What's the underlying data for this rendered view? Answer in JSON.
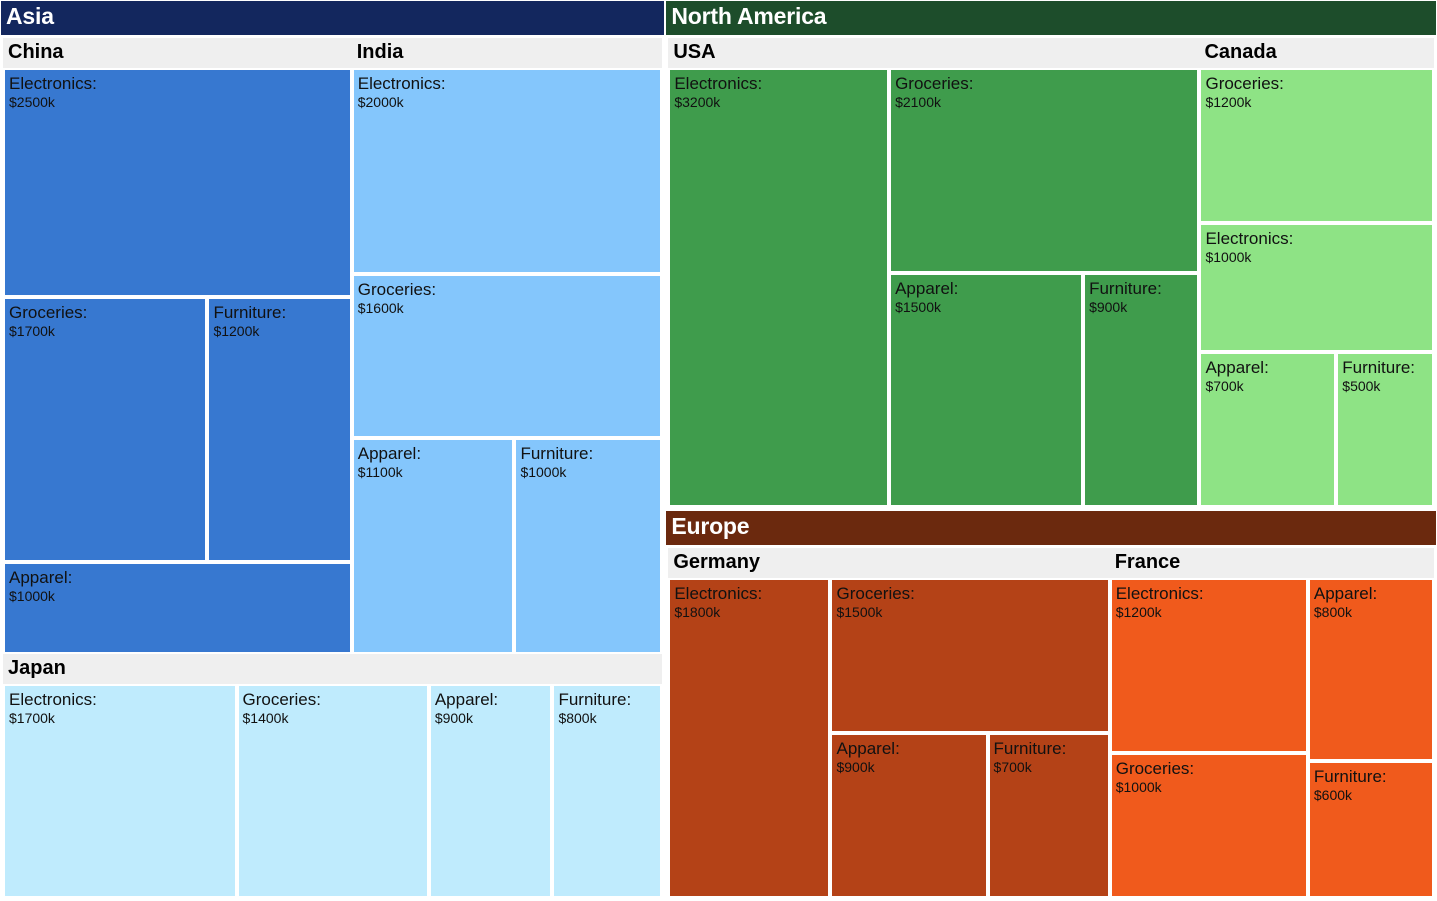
{
  "chart_data": {
    "type": "treemap",
    "unit_prefix": "$",
    "unit_suffix": "k",
    "regions": [
      {
        "name": "Asia",
        "color": "#13275e",
        "countries": [
          {
            "name": "China",
            "color": "#3778d0",
            "items": [
              {
                "category": "Electronics:",
                "value": 2500
              },
              {
                "category": "Groceries:",
                "value": 1700
              },
              {
                "category": "Furniture:",
                "value": 1200
              },
              {
                "category": "Apparel:",
                "value": 1000
              }
            ]
          },
          {
            "name": "India",
            "color": "#84c6fc",
            "items": [
              {
                "category": "Electronics:",
                "value": 2000
              },
              {
                "category": "Groceries:",
                "value": 1600
              },
              {
                "category": "Apparel:",
                "value": 1100
              },
              {
                "category": "Furniture:",
                "value": 1000
              }
            ]
          },
          {
            "name": "Japan",
            "color": "#bfebfd",
            "items": [
              {
                "category": "Electronics:",
                "value": 1700
              },
              {
                "category": "Groceries:",
                "value": 1400
              },
              {
                "category": "Apparel:",
                "value": 900
              },
              {
                "category": "Furniture:",
                "value": 800
              }
            ]
          }
        ]
      },
      {
        "name": "North America",
        "color": "#1d4d2b",
        "countries": [
          {
            "name": "USA",
            "color": "#3f9c4c",
            "items": [
              {
                "category": "Electronics:",
                "value": 3200
              },
              {
                "category": "Groceries:",
                "value": 2100
              },
              {
                "category": "Apparel:",
                "value": 1500
              },
              {
                "category": "Furniture:",
                "value": 900
              }
            ]
          },
          {
            "name": "Canada",
            "color": "#8ee385",
            "items": [
              {
                "category": "Groceries:",
                "value": 1200
              },
              {
                "category": "Electronics:",
                "value": 1000
              },
              {
                "category": "Apparel:",
                "value": 700
              },
              {
                "category": "Furniture:",
                "value": 500
              }
            ]
          }
        ]
      },
      {
        "name": "Europe",
        "color": "#6b290e",
        "countries": [
          {
            "name": "Germany",
            "color": "#b44217",
            "items": [
              {
                "category": "Electronics:",
                "value": 1800
              },
              {
                "category": "Groceries:",
                "value": 1500
              },
              {
                "category": "Apparel:",
                "value": 900
              },
              {
                "category": "Furniture:",
                "value": 700
              }
            ]
          },
          {
            "name": "France",
            "color": "#f05a1c",
            "items": [
              {
                "category": "Electronics:",
                "value": 1200
              },
              {
                "category": "Groceries:",
                "value": 1000
              },
              {
                "category": "Apparel:",
                "value": 800
              },
              {
                "category": "Furniture:",
                "value": 600
              }
            ]
          }
        ]
      }
    ]
  }
}
